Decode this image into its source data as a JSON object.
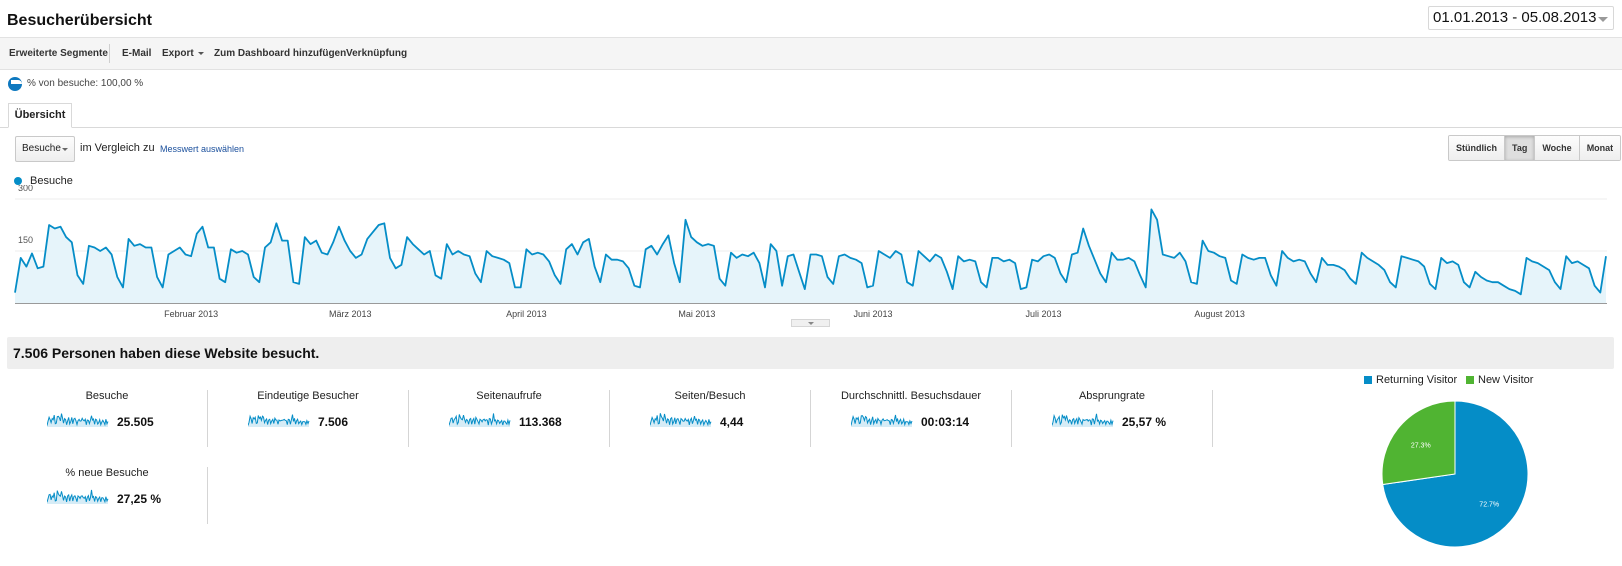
{
  "header": {
    "title": "Besucherübersicht",
    "date_range": "01.01.2013 - 05.08.2013"
  },
  "toolbar": {
    "advanced_segments": "Erweiterte Segmente",
    "email": "E-Mail",
    "export": "Export",
    "add_to_dashboard": "Zum Dashboard hinzufügen",
    "shortcut": "Verknüpfung"
  },
  "segment": {
    "label": "% von besuche: 100,00 %"
  },
  "tabs": [
    {
      "label": "Übersicht"
    }
  ],
  "chart_controls": {
    "metric": "Besuche",
    "compare_text": "im Vergleich zu",
    "select_metric_link": "Messwert auswählen",
    "granularity": [
      {
        "label": "Stündlich",
        "active": false
      },
      {
        "label": "Tag",
        "active": true
      },
      {
        "label": "Woche",
        "active": false
      },
      {
        "label": "Monat",
        "active": false
      }
    ]
  },
  "chart_data": {
    "type": "area",
    "series": [
      {
        "name": "Besuche",
        "color": "#058dc7",
        "values": [
          30,
          130,
          105,
          143,
          100,
          105,
          225,
          215,
          220,
          190,
          175,
          80,
          55,
          165,
          160,
          150,
          160,
          140,
          75,
          45,
          185,
          165,
          170,
          160,
          160,
          75,
          45,
          140,
          150,
          160,
          140,
          135,
          200,
          220,
          160,
          160,
          70,
          60,
          155,
          145,
          150,
          140,
          75,
          60,
          160,
          175,
          230,
          180,
          180,
          60,
          55,
          190,
          170,
          180,
          145,
          140,
          175,
          220,
          180,
          150,
          130,
          140,
          185,
          205,
          225,
          230,
          130,
          100,
          110,
          190,
          170,
          155,
          140,
          150,
          80,
          70,
          170,
          140,
          150,
          140,
          135,
          85,
          60,
          150,
          135,
          130,
          125,
          115,
          45,
          45,
          155,
          140,
          145,
          140,
          120,
          80,
          55,
          155,
          170,
          140,
          175,
          185,
          105,
          60,
          140,
          125,
          125,
          120,
          100,
          50,
          45,
          155,
          165,
          140,
          170,
          195,
          115,
          60,
          240,
          190,
          175,
          165,
          170,
          165,
          70,
          50,
          145,
          130,
          140,
          135,
          145,
          115,
          45,
          170,
          150,
          50,
          135,
          140,
          90,
          40,
          140,
          140,
          135,
          75,
          55,
          135,
          140,
          130,
          125,
          115,
          45,
          50,
          150,
          140,
          130,
          150,
          140,
          60,
          50,
          150,
          135,
          120,
          140,
          130,
          90,
          40,
          135,
          120,
          125,
          120,
          60,
          45,
          130,
          130,
          120,
          125,
          115,
          40,
          45,
          125,
          120,
          135,
          140,
          130,
          85,
          60,
          140,
          145,
          215,
          165,
          125,
          85,
          60,
          145,
          125,
          125,
          130,
          120,
          80,
          45,
          270,
          240,
          140,
          135,
          130,
          145,
          120,
          60,
          55,
          180,
          150,
          145,
          135,
          130,
          65,
          55,
          140,
          130,
          125,
          130,
          130,
          80,
          50,
          150,
          130,
          120,
          125,
          120,
          85,
          60,
          130,
          110,
          110,
          105,
          95,
          70,
          55,
          145,
          130,
          120,
          110,
          95,
          60,
          45,
          135,
          130,
          125,
          120,
          105,
          55,
          40,
          130,
          115,
          120,
          110,
          60,
          45,
          90,
          75,
          65,
          60,
          60,
          50,
          40,
          35,
          25,
          130,
          120,
          115,
          105,
          95,
          60,
          40,
          135,
          115,
          120,
          110,
          100,
          50,
          30,
          135
        ]
      }
    ],
    "x_ticks": [
      "Februar 2013",
      "März 2013",
      "April 2013",
      "Mai 2013",
      "Juni 2013",
      "Juli 2013",
      "August 2013"
    ],
    "y_ticks": [
      300,
      150
    ],
    "ylim": [
      0,
      300
    ],
    "grid": true
  },
  "summary": {
    "headline": "7.506 Personen haben diese Website besucht."
  },
  "stats": [
    {
      "name": "Besuche",
      "value": "25.505"
    },
    {
      "name": "Eindeutige Besucher",
      "value": "7.506"
    },
    {
      "name": "Seitenaufrufe",
      "value": "113.368"
    },
    {
      "name": "Seiten/Besuch",
      "value": "4,44"
    },
    {
      "name": "Durchschnittl. Besuchsdauer",
      "value": "00:03:14"
    },
    {
      "name": "Absprungrate",
      "value": "25,57 %"
    },
    {
      "name": "% neue Besuche",
      "value": "27,25 %"
    }
  ],
  "pie": {
    "type": "pie",
    "legend": [
      {
        "name": "Returning Visitor",
        "color": "#058dc7"
      },
      {
        "name": "New Visitor",
        "color": "#50b432"
      }
    ],
    "slices": [
      {
        "name": "Returning Visitor",
        "value": 72.7,
        "label": "72.7%",
        "color": "#058dc7"
      },
      {
        "name": "New Visitor",
        "value": 27.3,
        "label": "27.3%",
        "color": "#50b432"
      }
    ]
  }
}
